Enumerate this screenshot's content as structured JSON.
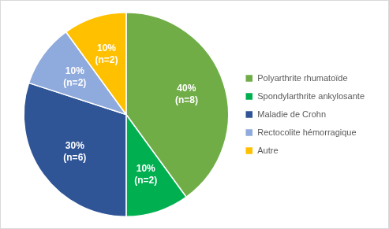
{
  "chart_data": {
    "type": "pie",
    "categories": [
      "Polyarthrite rhumatoïde",
      "Spondylarthrite ankylosante",
      "Maladie de Crohn",
      "Rectocolite hémorragique",
      "Autre"
    ],
    "values": [
      40,
      10,
      30,
      10,
      10
    ],
    "value_labels": [
      [
        "40%",
        "(n=8)"
      ],
      [
        "10%",
        "(n=2)"
      ],
      [
        "30%",
        "(n=6)"
      ],
      [
        "10%",
        "(n=2)"
      ],
      [
        "10%",
        "(n=2)"
      ]
    ],
    "colors": [
      "#70ad47",
      "#00b050",
      "#2f5597",
      "#8faadc",
      "#ffc000"
    ],
    "data_labels": true,
    "legend": "right"
  }
}
